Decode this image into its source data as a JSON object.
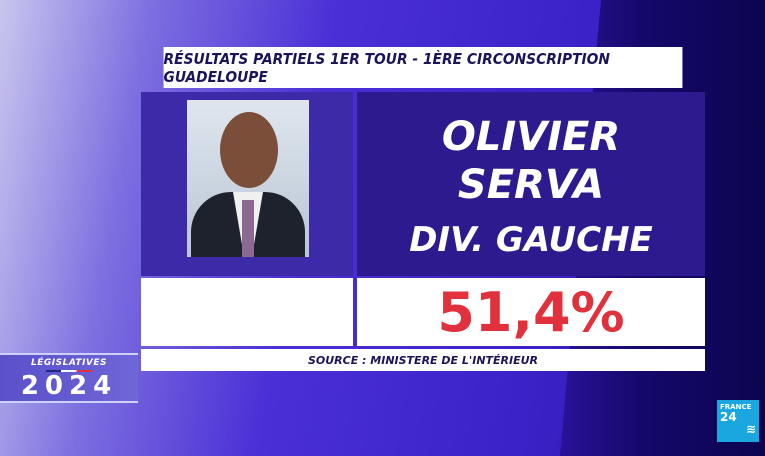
{
  "title": "RÉSULTATS PARTIELS 1ER TOUR - 1ÈRE CIRCONSCRIPTION GUADELOUPE",
  "candidate": {
    "first_name": "OLIVIER",
    "last_name": "SERVA",
    "party": "DIV. GAUCHE",
    "result": "51,4%"
  },
  "source": "SOURCE : MINISTERE DE L'INTÉRIEUR",
  "badge": {
    "label": "LÉGISLATIVES",
    "year": "2024"
  },
  "logo": {
    "line1": "FRANCE",
    "line2": "24"
  },
  "colors": {
    "result": "#e0313c",
    "panel": "#2c1a8e",
    "text": "#1c1459"
  }
}
